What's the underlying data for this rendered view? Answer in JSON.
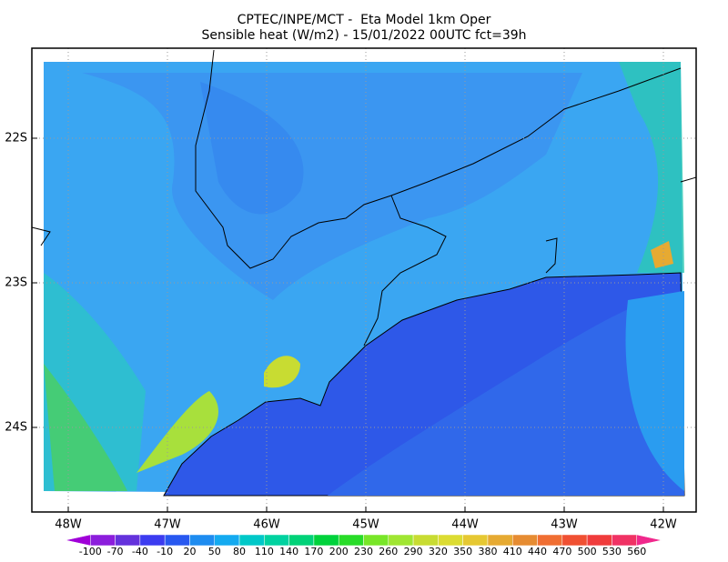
{
  "header": {
    "line1": "CPTEC/INPE/MCT -  Eta Model 1km Oper",
    "line2": "Sensible heat (W/m2) - 15/01/2022 00UTC fct=39h"
  },
  "map": {
    "lat_labels": [
      "22S",
      "23S",
      "24S"
    ],
    "lon_labels": [
      "48W",
      "47W",
      "46W",
      "45W",
      "44W",
      "43W",
      "42W"
    ]
  },
  "colorbar": {
    "labels": [
      -100,
      -70,
      -40,
      -10,
      20,
      50,
      80,
      110,
      140,
      170,
      200,
      230,
      260,
      290,
      320,
      350,
      380,
      410,
      440,
      470,
      500,
      530,
      560
    ],
    "colors": [
      "#a000d8",
      "#8c1edc",
      "#6432dc",
      "#3c3cf0",
      "#2858f0",
      "#1e8cf0",
      "#14aaf0",
      "#00c8c8",
      "#00d2a0",
      "#00d278",
      "#00d23c",
      "#28dc28",
      "#78e628",
      "#a0e632",
      "#c8dc32",
      "#dcdc32",
      "#e6c832",
      "#e6aa32",
      "#e68c32",
      "#f06e32",
      "#f05032",
      "#f03c3c",
      "#f03264",
      "#f0288c"
    ]
  }
}
